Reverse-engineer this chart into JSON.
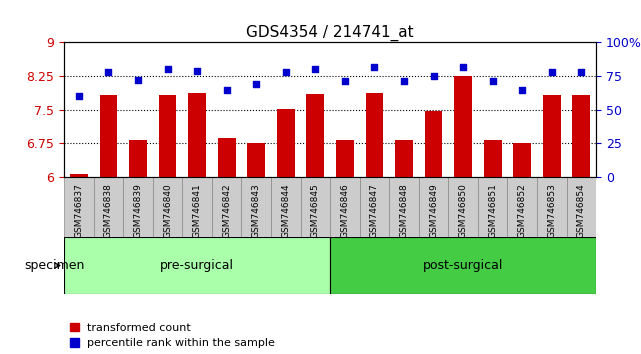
{
  "title": "GDS4354 / 214741_at",
  "samples": [
    "GSM746837",
    "GSM746838",
    "GSM746839",
    "GSM746840",
    "GSM746841",
    "GSM746842",
    "GSM746843",
    "GSM746844",
    "GSM746845",
    "GSM746846",
    "GSM746847",
    "GSM746848",
    "GSM746849",
    "GSM746850",
    "GSM746851",
    "GSM746852",
    "GSM746853",
    "GSM746854"
  ],
  "bar_values": [
    6.07,
    7.82,
    6.83,
    7.82,
    7.87,
    6.87,
    6.75,
    7.52,
    7.85,
    6.82,
    7.88,
    6.83,
    7.47,
    8.25,
    6.82,
    6.75,
    7.83,
    7.82
  ],
  "percentile_values": [
    60,
    78,
    72,
    80,
    79,
    65,
    69,
    78,
    80,
    71,
    82,
    71,
    75,
    82,
    71,
    65,
    78,
    78
  ],
  "pre_surgical_count": 9,
  "post_surgical_count": 9,
  "bar_color": "#cc0000",
  "dot_color": "#0000cc",
  "pre_surgical_color": "#aaffaa",
  "post_surgical_color": "#44cc44",
  "ylim_left": [
    6,
    9
  ],
  "ylim_right": [
    0,
    100
  ],
  "yticks_left": [
    6,
    6.75,
    7.5,
    8.25,
    9
  ],
  "yticks_right": [
    0,
    25,
    50,
    75,
    100
  ],
  "ytick_labels_left": [
    "6",
    "6.75",
    "7.5",
    "8.25",
    "9"
  ],
  "ytick_labels_right": [
    "0",
    "25",
    "50",
    "75",
    "100%"
  ],
  "bar_width": 0.6,
  "legend_labels": [
    "transformed count",
    "percentile rank within the sample"
  ],
  "specimen_label": "specimen",
  "pre_surgical_label": "pre-surgical",
  "post_surgical_label": "post-surgical",
  "background_plot": "#ffffff",
  "left_tick_color": "#cc0000",
  "right_tick_color": "#0000cc",
  "xtick_bg_color": "#cccccc",
  "xtick_border_color": "#888888"
}
